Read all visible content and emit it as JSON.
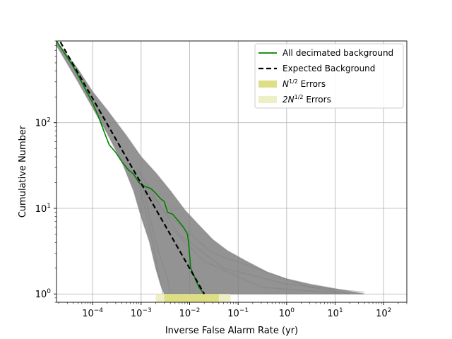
{
  "chart_data": {
    "type": "line",
    "title": "",
    "xlabel": "Inverse False Alarm Rate (yr)",
    "ylabel": "Cumulative Number",
    "xscale": "log",
    "yscale": "log",
    "xlim": [
      1.8e-05,
      300
    ],
    "ylim": [
      0.8,
      900
    ],
    "grid": true,
    "legend_placement": "top-right",
    "x_ticks": [
      {
        "value": 0.0001,
        "base": "10",
        "exp": "−4"
      },
      {
        "value": 0.001,
        "base": "10",
        "exp": "−3"
      },
      {
        "value": 0.01,
        "base": "10",
        "exp": "−2"
      },
      {
        "value": 0.1,
        "base": "10",
        "exp": "−1"
      },
      {
        "value": 1,
        "base": "10",
        "exp": "0"
      },
      {
        "value": 10,
        "base": "10",
        "exp": "1"
      },
      {
        "value": 100,
        "base": "10",
        "exp": "2"
      }
    ],
    "y_ticks": [
      {
        "value": 1,
        "base": "10",
        "exp": "0"
      },
      {
        "value": 10,
        "base": "10",
        "exp": "1"
      },
      {
        "value": 100,
        "base": "10",
        "exp": "2"
      }
    ],
    "legend": [
      {
        "key": "green",
        "label": "All decimated background",
        "style": "line",
        "color": "#008000"
      },
      {
        "key": "black",
        "label": "Expected Background",
        "style": "dashed",
        "color": "#000000"
      },
      {
        "key": "err1",
        "label_main": "N",
        "label_sup": "1/2",
        "label_rest": " Errors",
        "style": "patch",
        "color": "#dede85"
      },
      {
        "key": "err2",
        "label_main": "2N",
        "label_sup": "1/2",
        "label_rest": " Errors",
        "style": "patch",
        "color": "#efefc6"
      }
    ],
    "series": [
      {
        "key": "green",
        "color": "#008000",
        "x": [
          1.8e-05,
          4e-05,
          7e-05,
          0.0001,
          0.00013,
          0.00017,
          0.00022,
          0.0003,
          0.0004,
          0.00055,
          0.0007,
          0.0009,
          0.0012,
          0.0016,
          0.002,
          0.0025,
          0.003,
          0.0035,
          0.0045,
          0.006,
          0.0075,
          0.009,
          0.0095,
          0.0105,
          0.0125,
          0.0155,
          0.02
        ],
        "y": [
          900,
          450,
          250,
          170,
          120,
          80,
          55,
          45,
          35,
          28,
          25,
          20,
          18,
          17,
          15,
          13,
          12,
          9,
          8.5,
          7,
          6,
          5,
          4,
          2,
          1.6,
          1.2,
          1
        ]
      },
      {
        "key": "black",
        "color": "#000000",
        "dashed": true,
        "x": [
          1.8e-05,
          0.02
        ],
        "y": [
          1050,
          1
        ]
      }
    ],
    "background_band": {
      "color": "#808080",
      "upper": {
        "x": [
          1.8e-05,
          5e-05,
          0.0001,
          0.0002,
          0.0005,
          0.001,
          0.002,
          0.004,
          0.008,
          0.015,
          0.03,
          0.06,
          0.15,
          0.4,
          1,
          3,
          10,
          40
        ],
        "y": [
          900,
          420,
          230,
          140,
          70,
          40,
          26,
          16,
          9.5,
          6.5,
          4.3,
          3.2,
          2.4,
          1.8,
          1.5,
          1.3,
          1.15,
          1
        ]
      },
      "lower": {
        "x": [
          1.8e-05,
          5e-05,
          0.0001,
          0.0002,
          0.0004,
          0.0007,
          0.001,
          0.0015,
          0.002,
          0.0025,
          0.003
        ],
        "y": [
          800,
          300,
          150,
          75,
          35,
          16,
          8,
          4,
          2,
          1.3,
          1
        ]
      }
    },
    "error_band": {
      "n_half": {
        "color": "#dede85",
        "x_range": [
          0.003,
          0.04
        ],
        "y_range": [
          0.8,
          1
        ]
      },
      "two_n_half": {
        "color": "#efefc6",
        "x_range": [
          0.002,
          0.07
        ],
        "y_range": [
          0.8,
          1
        ]
      }
    }
  }
}
